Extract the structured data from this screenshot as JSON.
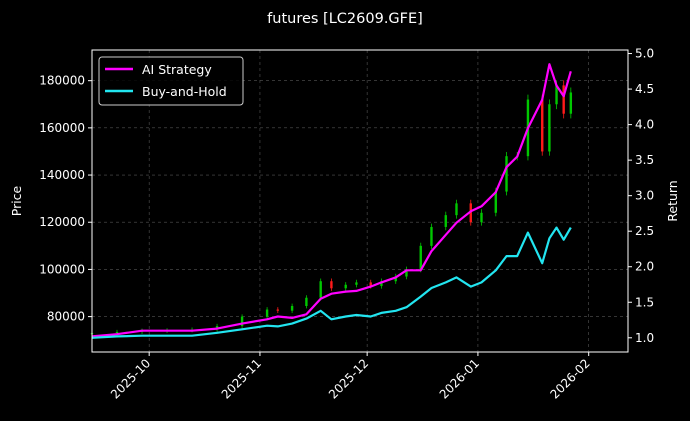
{
  "chart_data": {
    "type": "candlestick+line",
    "title": "futures [LC2609.GFE]",
    "xlabel": "",
    "ylabel_left": "Price",
    "ylabel_right": "Return",
    "x_range": [
      "2025-09-15",
      "2026-02-12"
    ],
    "y_left_range": [
      65000,
      193000
    ],
    "y_right_range": [
      0.8,
      5.05
    ],
    "x_ticks": [
      {
        "date": "2025-10-01",
        "label": "2025-10"
      },
      {
        "date": "2025-11-01",
        "label": "2025-11"
      },
      {
        "date": "2025-12-01",
        "label": "2025-12"
      },
      {
        "date": "2026-01-01",
        "label": "2026-01"
      },
      {
        "date": "2026-02-01",
        "label": "2026-02"
      }
    ],
    "y_left_ticks": [
      80000,
      100000,
      120000,
      140000,
      160000,
      180000
    ],
    "y_left_tick_labels": [
      "80000",
      "100000",
      "120000",
      "140000",
      "160000",
      "180000"
    ],
    "y_right_ticks": [
      1.0,
      1.5,
      2.0,
      2.5,
      3.0,
      3.5,
      4.0,
      4.5,
      5.0
    ],
    "y_right_tick_labels": [
      "1.0",
      "1.5",
      "2.0",
      "2.5",
      "3.0",
      "3.5",
      "4.0",
      "4.5",
      "5.0"
    ],
    "grid": true,
    "legend_position": "top-left",
    "colors": {
      "background": "#000000",
      "up": "#00c800",
      "down": "#ff1a1a",
      "ai_strategy": "#ff00ff",
      "buy_and_hold": "#22e5f0",
      "grid": "#555555",
      "axis": "#ffffff"
    },
    "series": [
      {
        "name": "AI Strategy",
        "axis": "right",
        "x": [
          "2025-09-15",
          "2025-09-22",
          "2025-09-29",
          "2025-10-06",
          "2025-10-13",
          "2025-10-20",
          "2025-10-27",
          "2025-11-03",
          "2025-11-06",
          "2025-11-10",
          "2025-11-14",
          "2025-11-18",
          "2025-11-21",
          "2025-11-25",
          "2025-11-28",
          "2025-12-02",
          "2025-12-05",
          "2025-12-09",
          "2025-12-12",
          "2025-12-16",
          "2025-12-19",
          "2025-12-23",
          "2025-12-26",
          "2025-12-30",
          "2026-01-02",
          "2026-01-06",
          "2026-01-09",
          "2026-01-12",
          "2026-01-15",
          "2026-01-19",
          "2026-01-21",
          "2026-01-23",
          "2026-01-25",
          "2026-01-27"
        ],
        "values": [
          1.02,
          1.05,
          1.1,
          1.1,
          1.1,
          1.13,
          1.2,
          1.26,
          1.3,
          1.28,
          1.33,
          1.55,
          1.62,
          1.65,
          1.66,
          1.72,
          1.78,
          1.85,
          1.95,
          1.95,
          2.22,
          2.45,
          2.62,
          2.78,
          2.85,
          3.05,
          3.4,
          3.55,
          3.95,
          4.35,
          4.85,
          4.55,
          4.4,
          4.75
        ]
      },
      {
        "name": "Buy-and-Hold",
        "axis": "right",
        "x": [
          "2025-09-15",
          "2025-09-22",
          "2025-09-29",
          "2025-10-06",
          "2025-10-13",
          "2025-10-20",
          "2025-10-27",
          "2025-11-03",
          "2025-11-06",
          "2025-11-10",
          "2025-11-14",
          "2025-11-18",
          "2025-11-21",
          "2025-11-25",
          "2025-11-28",
          "2025-12-02",
          "2025-12-05",
          "2025-12-09",
          "2025-12-12",
          "2025-12-16",
          "2025-12-19",
          "2025-12-23",
          "2025-12-26",
          "2025-12-30",
          "2026-01-02",
          "2026-01-06",
          "2026-01-09",
          "2026-01-12",
          "2026-01-15",
          "2026-01-19",
          "2026-01-21",
          "2026-01-23",
          "2026-01-25",
          "2026-01-27"
        ],
        "values": [
          1.0,
          1.02,
          1.03,
          1.03,
          1.03,
          1.07,
          1.12,
          1.17,
          1.16,
          1.2,
          1.27,
          1.38,
          1.26,
          1.3,
          1.32,
          1.3,
          1.35,
          1.38,
          1.43,
          1.58,
          1.7,
          1.78,
          1.85,
          1.72,
          1.78,
          1.95,
          2.15,
          2.15,
          2.48,
          2.05,
          2.4,
          2.55,
          2.38,
          2.55
        ]
      }
    ],
    "candles": {
      "axis": "left",
      "x": [
        "2025-09-15",
        "2025-09-22",
        "2025-09-29",
        "2025-10-06",
        "2025-10-13",
        "2025-10-20",
        "2025-10-27",
        "2025-11-03",
        "2025-11-06",
        "2025-11-10",
        "2025-11-14",
        "2025-11-18",
        "2025-11-21",
        "2025-11-25",
        "2025-11-28",
        "2025-12-02",
        "2025-12-05",
        "2025-12-09",
        "2025-12-12",
        "2025-12-16",
        "2025-12-19",
        "2025-12-23",
        "2025-12-26",
        "2025-12-30",
        "2026-01-02",
        "2026-01-06",
        "2026-01-09",
        "2026-01-12",
        "2026-01-15",
        "2026-01-19",
        "2026-01-21",
        "2026-01-23",
        "2026-01-25",
        "2026-01-27"
      ],
      "close": [
        73000,
        73500,
        74000,
        74200,
        74500,
        76000,
        80000,
        83000,
        82500,
        84500,
        88000,
        95000,
        92000,
        93500,
        94500,
        93000,
        95000,
        97000,
        100000,
        110000,
        118000,
        123000,
        128000,
        120000,
        124000,
        133000,
        148000,
        148000,
        172000,
        150000,
        170000,
        178000,
        166000,
        175000
      ]
    }
  },
  "legend": {
    "ai_strategy_label": "AI Strategy",
    "buy_and_hold_label": "Buy-and-Hold"
  }
}
